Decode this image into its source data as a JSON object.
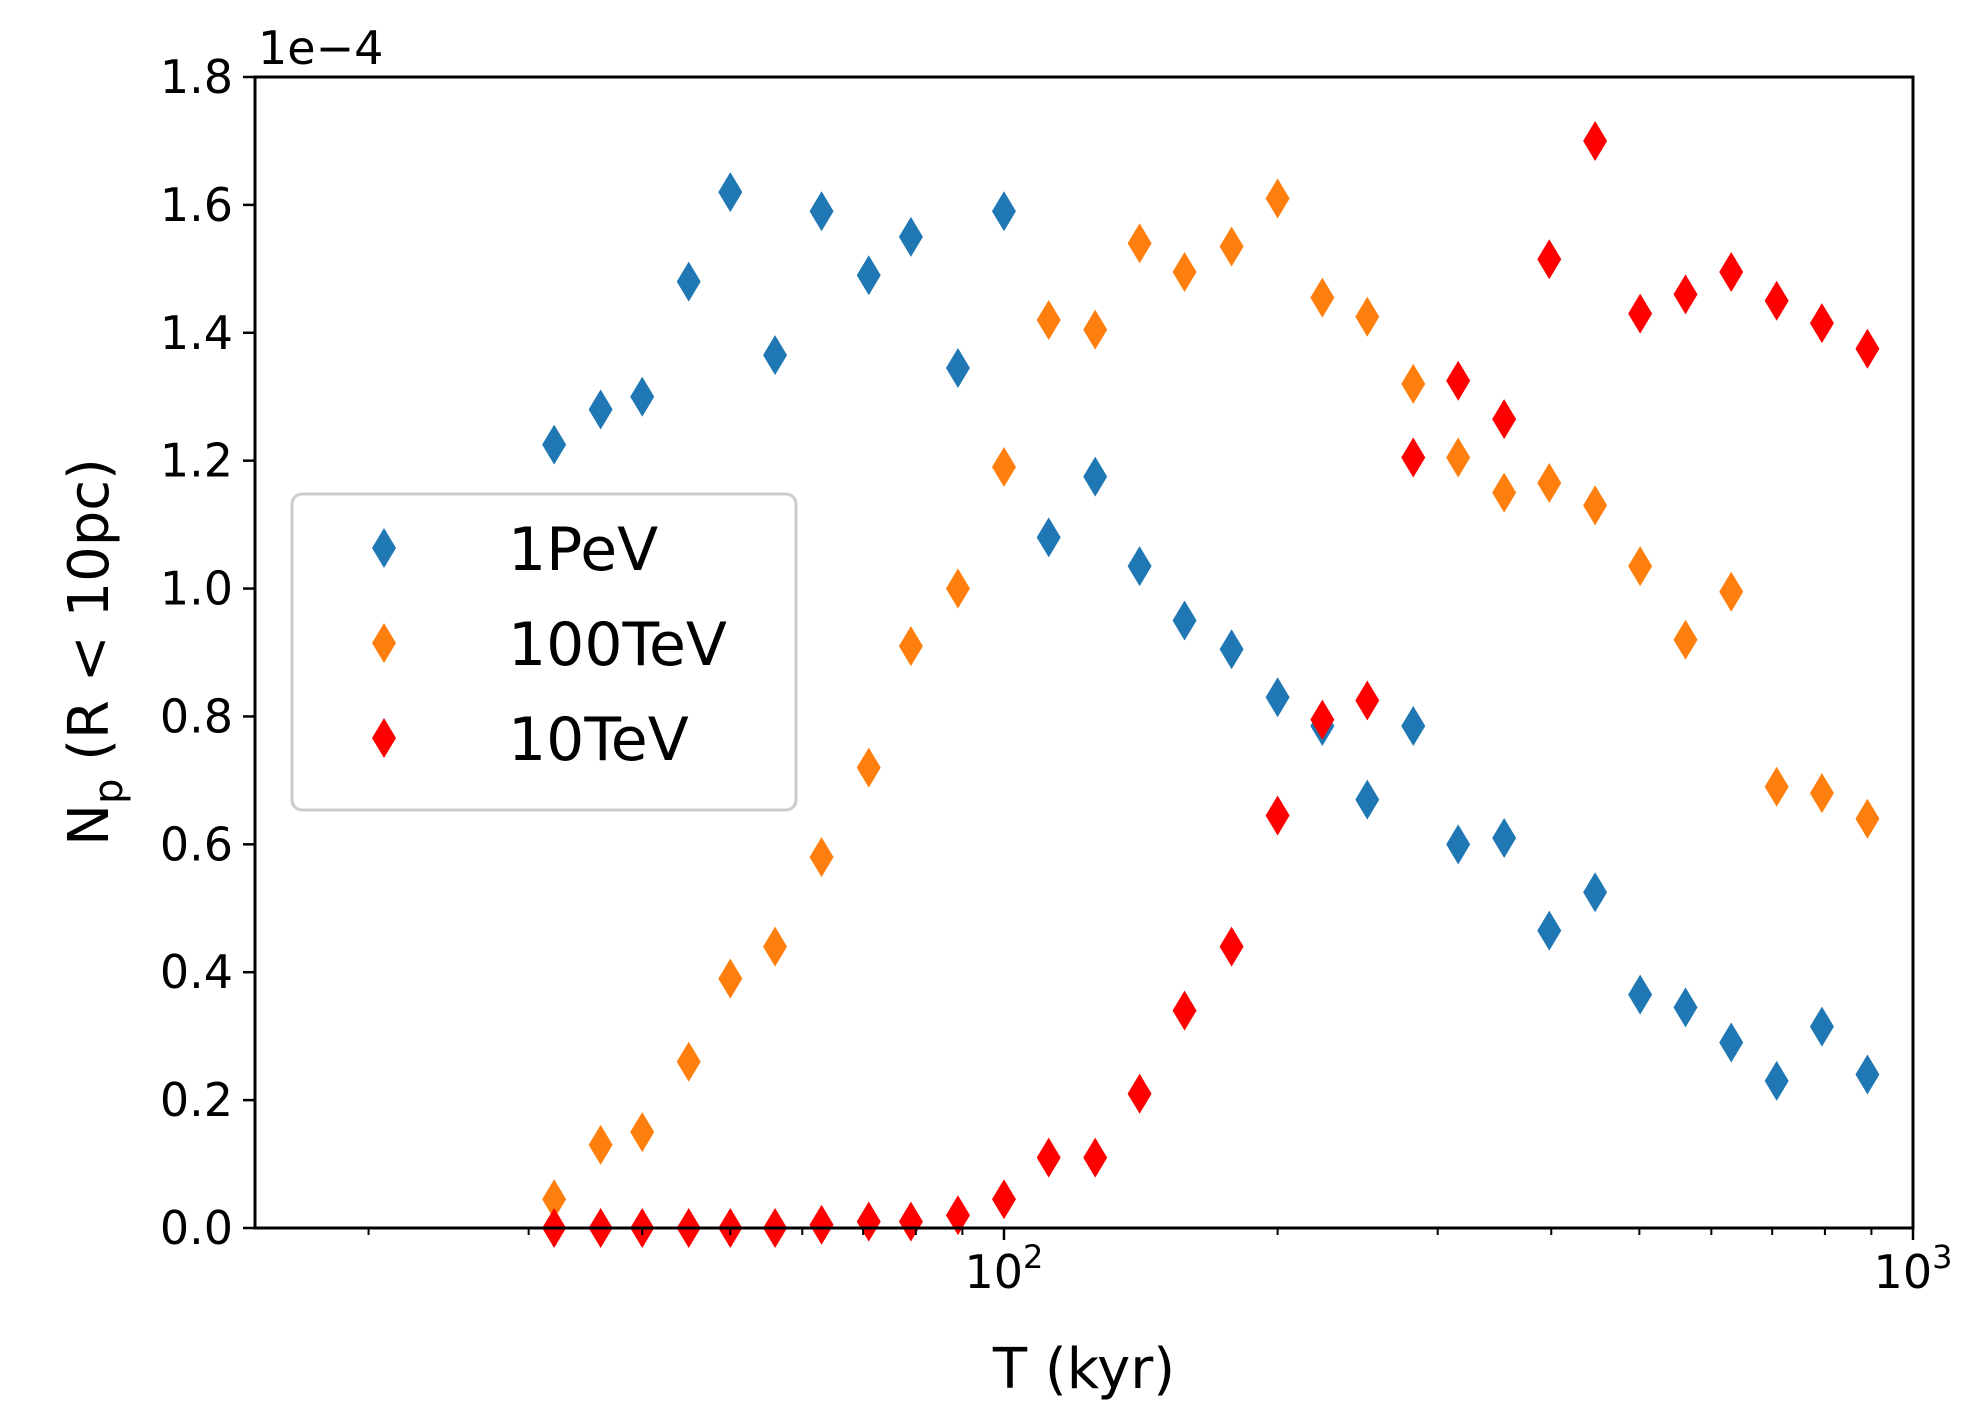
{
  "chart_data": {
    "type": "scatter",
    "title": "",
    "xlabel": "T (kyr)",
    "ylabel_main": "N",
    "ylabel_sub": "p",
    "ylabel_rest": " (R < 10pc)",
    "x_scale": "log",
    "xlim": [
      15,
      1000
    ],
    "ylim": [
      0,
      1.8
    ],
    "y_offset_label": "1e−4",
    "y_ticks": [
      0.0,
      0.2,
      0.4,
      0.6,
      0.8,
      1.0,
      1.2,
      1.4,
      1.6,
      1.8
    ],
    "y_tick_labels": [
      "0.0",
      "0.2",
      "0.4",
      "0.6",
      "0.8",
      "1.0",
      "1.2",
      "1.4",
      "1.6",
      "1.8"
    ],
    "x_major_ticks": [
      {
        "value": 100,
        "base": "10",
        "exp": "2"
      },
      {
        "value": 1000,
        "base": "10",
        "exp": "3"
      }
    ],
    "legend_position": "center-left",
    "marker": "thin-diamond",
    "x": [
      32,
      36,
      40,
      45,
      50,
      56,
      63,
      71,
      79,
      89,
      100,
      112,
      126,
      141,
      158,
      178,
      200,
      224,
      251,
      282,
      316,
      355,
      398,
      447,
      501,
      562,
      631,
      708,
      794,
      891
    ],
    "series": [
      {
        "name": "1PeV",
        "color": "#1f77b4",
        "values": [
          1.225,
          1.28,
          1.3,
          1.48,
          1.62,
          1.365,
          1.59,
          1.49,
          1.55,
          1.345,
          1.59,
          1.08,
          1.175,
          1.035,
          0.95,
          0.905,
          0.83,
          0.785,
          0.67,
          0.785,
          0.6,
          0.61,
          0.465,
          0.525,
          0.365,
          0.345,
          0.29,
          0.23,
          0.315,
          0.24
        ]
      },
      {
        "name": "100TeV",
        "color": "#ff7f0e",
        "values": [
          0.045,
          0.13,
          0.15,
          0.26,
          0.39,
          0.44,
          0.58,
          0.72,
          0.91,
          1.0,
          1.19,
          1.42,
          1.405,
          1.54,
          1.495,
          1.535,
          1.61,
          1.455,
          1.425,
          1.32,
          1.205,
          1.15,
          1.165,
          1.13,
          1.035,
          0.92,
          0.995,
          0.69,
          0.68,
          0.64
        ]
      },
      {
        "name": "10TeV",
        "color": "#ff0000",
        "values": [
          0.0,
          0.0,
          0.0,
          0.0,
          0.0,
          0.0,
          0.005,
          0.01,
          0.01,
          0.02,
          0.045,
          0.11,
          0.11,
          0.21,
          0.34,
          0.44,
          0.645,
          0.795,
          0.825,
          1.205,
          1.325,
          1.265,
          1.515,
          1.7,
          1.43,
          1.46,
          1.495,
          1.45,
          1.415,
          1.375
        ]
      }
    ]
  }
}
